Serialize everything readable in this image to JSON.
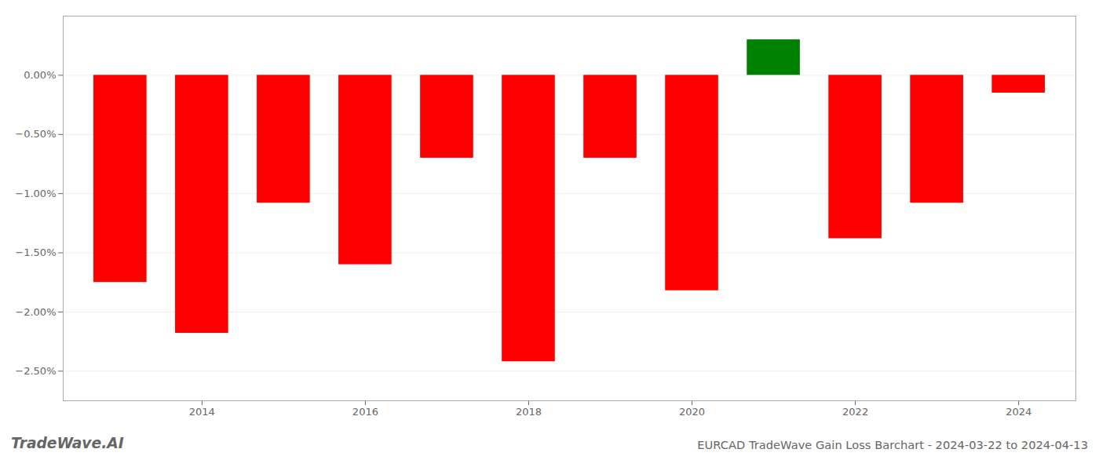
{
  "chart_data": {
    "type": "bar",
    "title": "EURCAD TradeWave Gain Loss Barchart - 2024-03-22 to 2024-04-13",
    "annotations": [
      "TradeWave.AI"
    ],
    "x": [
      2013,
      2014,
      2015,
      2016,
      2017,
      2018,
      2019,
      2020,
      2021,
      2022,
      2023,
      2024
    ],
    "values": [
      -1.75,
      -2.18,
      -1.08,
      -1.6,
      -0.7,
      -2.42,
      -0.7,
      -1.82,
      0.3,
      -1.38,
      -1.08,
      -0.15
    ],
    "colors": [
      "#ff0000",
      "#ff0000",
      "#ff0000",
      "#ff0000",
      "#ff0000",
      "#ff0000",
      "#ff0000",
      "#ff0000",
      "#008000",
      "#ff0000",
      "#ff0000",
      "#ff0000"
    ],
    "xlim": [
      2012.3,
      2024.7
    ],
    "xticks": [
      2014,
      2016,
      2018,
      2020,
      2022,
      2024
    ],
    "ylim": [
      -2.75,
      0.5
    ],
    "yticks": [
      {
        "value": -2.5,
        "label": "−2.50%"
      },
      {
        "value": -2.0,
        "label": "−2.00%"
      },
      {
        "value": -1.5,
        "label": "−1.50%"
      },
      {
        "value": -1.0,
        "label": "−1.00%"
      },
      {
        "value": -0.5,
        "label": "−0.50%"
      },
      {
        "value": 0.0,
        "label": "0.00%"
      }
    ],
    "grid": true
  }
}
